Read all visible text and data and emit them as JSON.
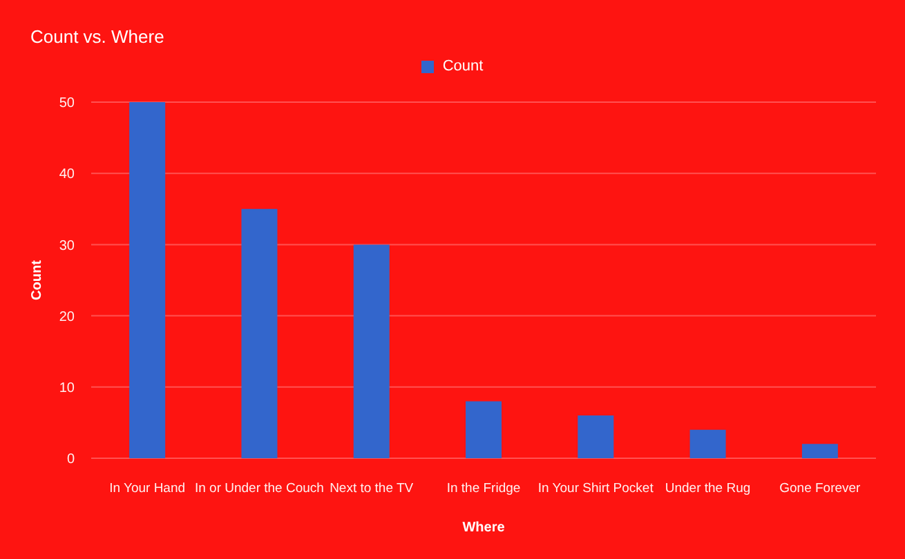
{
  "chart_data": {
    "type": "bar",
    "title": "Count vs. Where",
    "xlabel": "Where",
    "ylabel": "Count",
    "categories": [
      "In Your Hand",
      "In or Under the Couch",
      "Next to the TV",
      "In the Fridge",
      "In Your Shirt Pocket",
      "Under the Rug",
      "Gone Forever"
    ],
    "series": [
      {
        "name": "Count",
        "color": "#3366cc",
        "values": [
          50,
          35,
          30,
          8,
          6,
          4,
          2
        ]
      }
    ],
    "ylim": [
      0,
      50
    ],
    "yticks": [
      0,
      10,
      20,
      30,
      40,
      50
    ],
    "grid": "y",
    "legend": "top"
  }
}
